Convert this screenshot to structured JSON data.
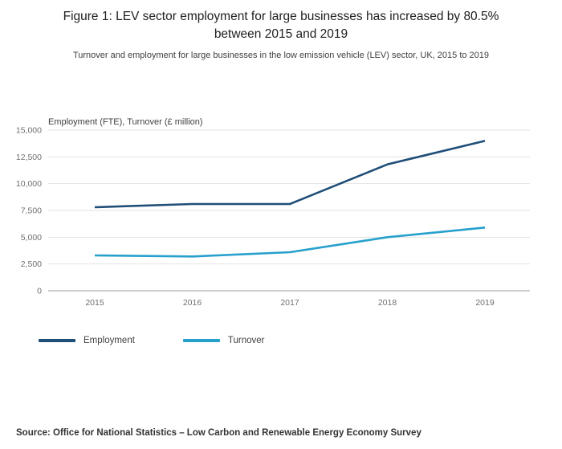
{
  "title": "Figure 1: LEV sector employment for large businesses has increased by 80.5% between 2015 and 2019",
  "subtitle": "Turnover and employment for large businesses in the low emission vehicle (LEV) sector, UK, 2015 to 2019",
  "axis_unit_label": "Employment (FTE), Turnover (£ million)",
  "source": "Source: Office for National Statistics – Low Carbon and Renewable Energy Economy Survey",
  "colors": {
    "employment": "#1f4e79",
    "turnover": "#27a0cc",
    "gridline": "#e2e2e2",
    "axis_line": "#9b9b9b"
  },
  "chart_data": {
    "type": "line",
    "x": [
      "2015",
      "2016",
      "2017",
      "2018",
      "2019"
    ],
    "series": [
      {
        "name": "Employment",
        "color": "#1f4e79",
        "values": [
          7800,
          8100,
          8100,
          11800,
          14000
        ]
      },
      {
        "name": "Turnover",
        "color": "#27a0cc",
        "values": [
          3300,
          3200,
          3600,
          5000,
          5900
        ]
      }
    ],
    "title": "Figure 1: LEV sector employment for large businesses has increased by 80.5% between 2015 and 2019",
    "xlabel": "",
    "ylabel": "Employment (FTE), Turnover (£ million)",
    "ylim": [
      0,
      15000
    ],
    "yticks": [
      0,
      2500,
      5000,
      7500,
      10000,
      12500,
      15000
    ],
    "grid": "horizontal",
    "legend_position": "bottom"
  }
}
